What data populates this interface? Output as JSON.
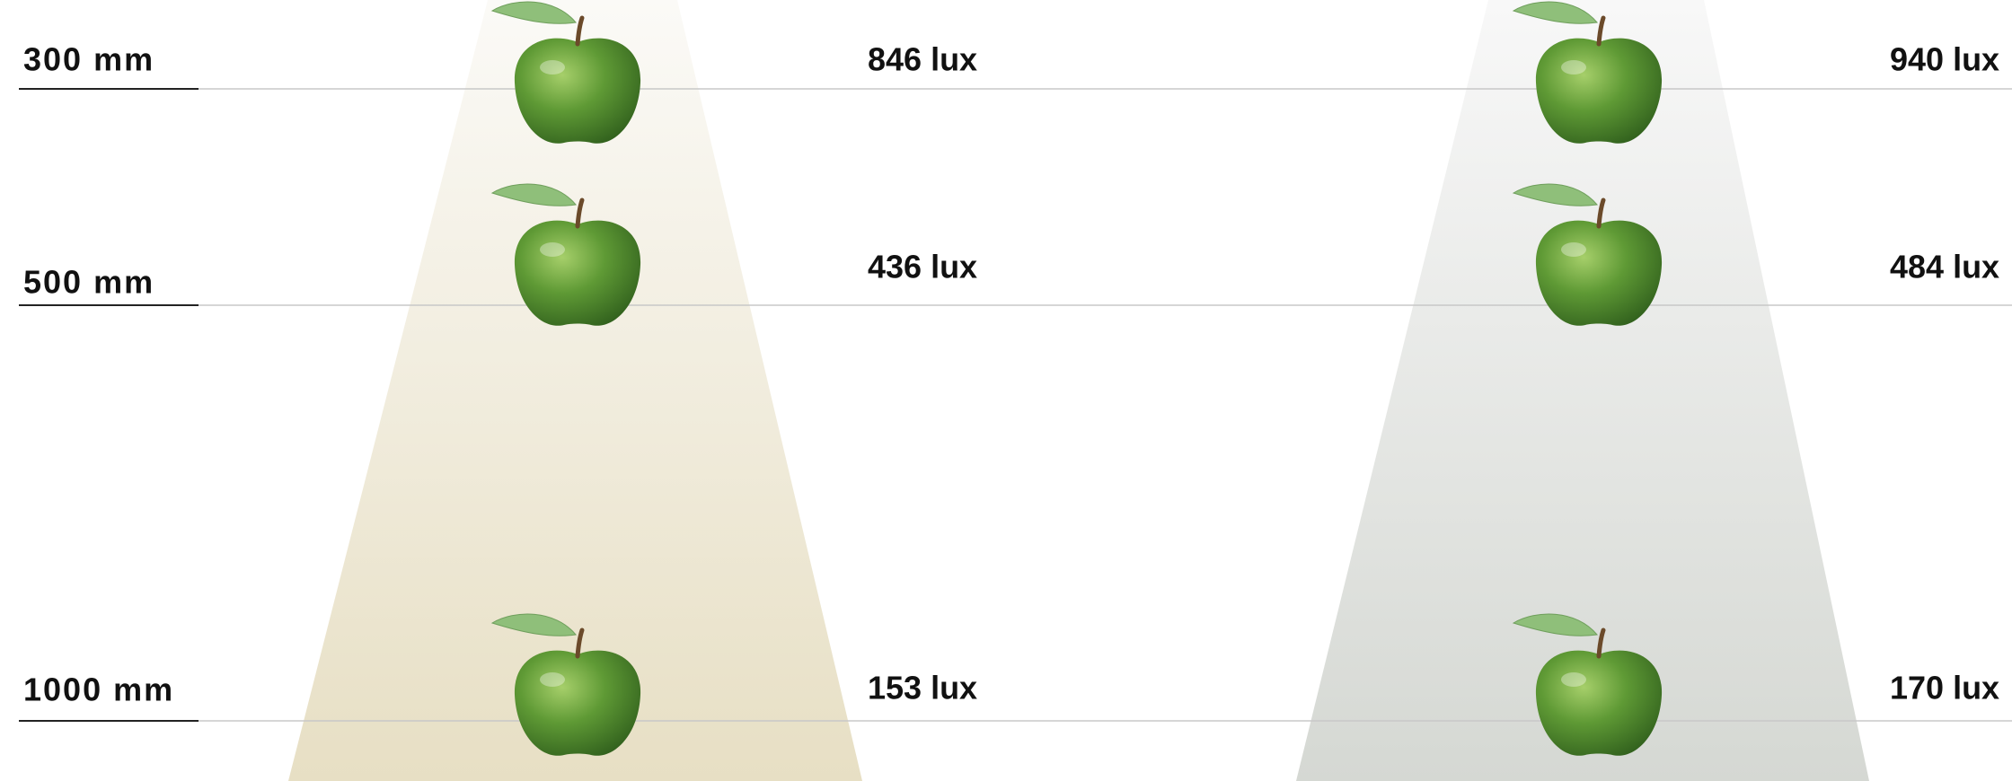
{
  "rows": [
    {
      "distance": "300 mm",
      "lux": [
        "846 lux",
        "940 lux"
      ]
    },
    {
      "distance": "500 mm",
      "lux": [
        "436 lux",
        "484 lux"
      ]
    },
    {
      "distance": "1000 mm",
      "lux": [
        "153 lux",
        "170 lux"
      ]
    }
  ]
}
